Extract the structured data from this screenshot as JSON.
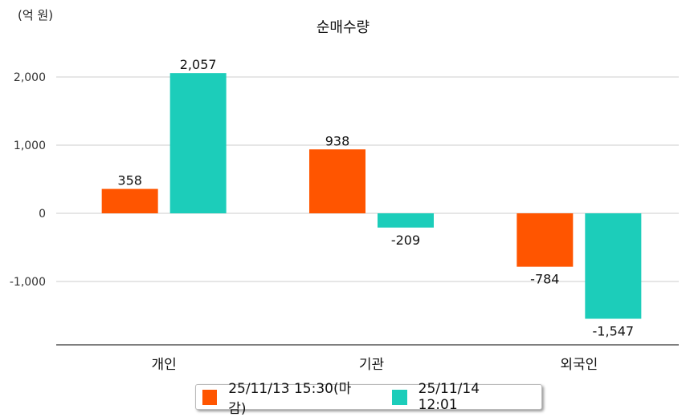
{
  "chart_data": {
    "type": "bar",
    "title": "순매수량",
    "ylabel": "(억 원)",
    "xlabel": "",
    "categories": [
      "개인",
      "기관",
      "외국인"
    ],
    "series": [
      {
        "name": "25/11/13 15:30(마감)",
        "color": "#ff5500",
        "values": [
          358,
          938,
          -784
        ],
        "labels": [
          "358",
          "938",
          "-784"
        ]
      },
      {
        "name": "25/11/14 12:01",
        "color": "#1ccdba",
        "values": [
          2057,
          -209,
          -1547
        ],
        "labels": [
          "2,057",
          "-209",
          "-1,547"
        ]
      }
    ],
    "yticks": [
      2000,
      1000,
      0,
      -1000
    ],
    "ytick_labels": [
      "2,000",
      "1,000",
      "0",
      "-1,000"
    ],
    "ylim": [
      -1930,
      2000
    ],
    "grid": true,
    "legend": "bottom"
  }
}
